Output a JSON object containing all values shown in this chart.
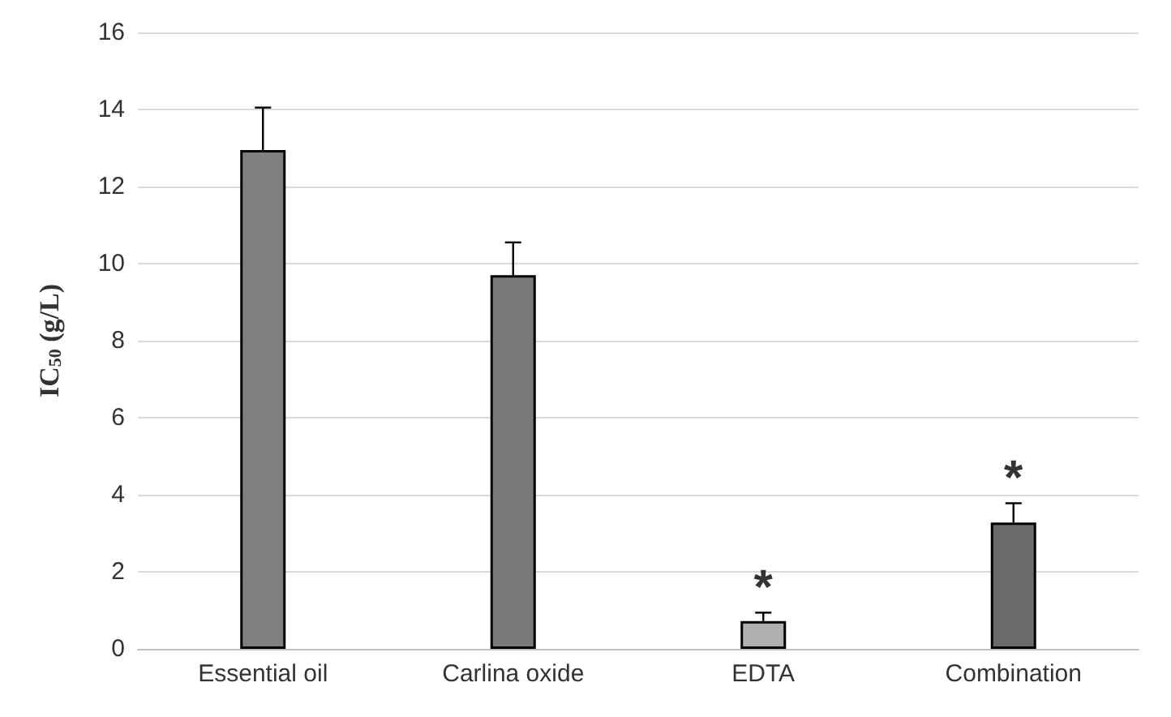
{
  "chart_data": {
    "type": "bar",
    "ylabel": "IC$_{50}$ (g/L)",
    "categories": [
      "Essential oil",
      "Carlina oxide",
      "EDTA",
      "Combination"
    ],
    "values": [
      12.95,
      9.7,
      0.72,
      3.28
    ],
    "errors": [
      1.1,
      0.85,
      0.22,
      0.5
    ],
    "colors": [
      "#808080",
      "#7a7a7a",
      "#b0b0b0",
      "#6a6a6a"
    ],
    "ylim": [
      0,
      16
    ],
    "yticks": [
      0,
      2,
      4,
      6,
      8,
      10,
      12,
      14,
      16
    ],
    "grid": "y",
    "annotations": [
      {
        "text": "*",
        "x": "EDTA",
        "y": 0.95
      },
      {
        "text": "*",
        "x": "Combination",
        "y": 3.78
      }
    ]
  }
}
